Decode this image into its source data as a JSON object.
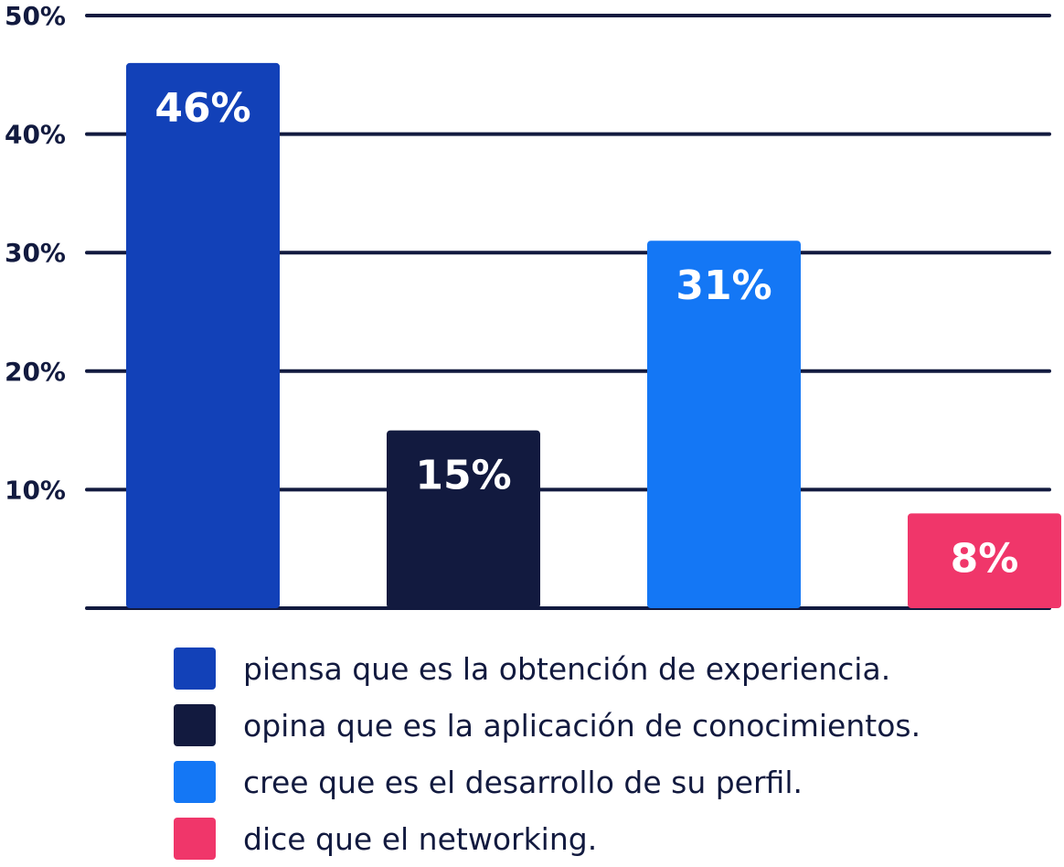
{
  "chart_data": {
    "type": "bar",
    "categories": [
      "piensa que es la obtención de experiencia.",
      "opina que es la aplicación de conocimientos.",
      "cree que es el desarrollo de su perfil.",
      "dice que el networking."
    ],
    "values": [
      46,
      15,
      31,
      8
    ],
    "value_labels": [
      "46%",
      "15%",
      "31%",
      "8%"
    ],
    "colors": [
      "#1241b8",
      "#121a3f",
      "#1477f5",
      "#f0366a"
    ],
    "ylim": [
      0,
      50
    ],
    "yticks": [
      10,
      20,
      30,
      40,
      50
    ],
    "ytick_labels": [
      "10%",
      "20%",
      "30%",
      "40%",
      "50%"
    ],
    "grid": true,
    "gridline_color": "#121a3f",
    "legend_position": "bottom",
    "title": "",
    "xlabel": "",
    "ylabel": ""
  }
}
